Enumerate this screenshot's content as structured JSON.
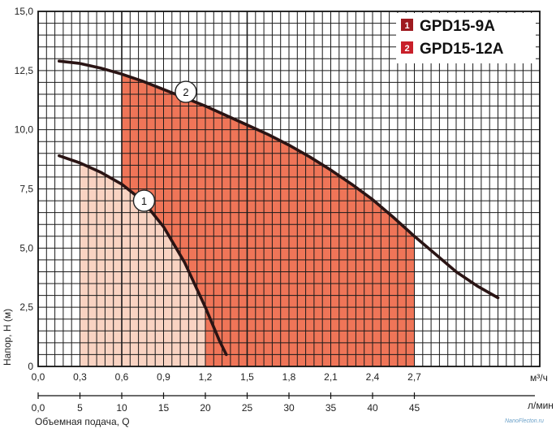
{
  "chart_data": {
    "type": "line",
    "title": "",
    "ylabel": "Напор, H (м)",
    "xlabel": "Объемная подача, Q",
    "x_unit_top": "м³/ч",
    "x_unit_bottom": "л/мин",
    "xlim": [
      0,
      3.6
    ],
    "ylim": [
      0,
      15
    ],
    "y_ticks": [
      0,
      2.5,
      5.0,
      7.5,
      10.0,
      12.5,
      15.0
    ],
    "y_tick_labels": [
      "0",
      "2,5",
      "5,0",
      "7,5",
      "10,0",
      "12,5",
      "15,0"
    ],
    "x_top_ticks": [
      0,
      0.3,
      0.6,
      0.9,
      1.2,
      1.5,
      1.8,
      2.1,
      2.4,
      2.7
    ],
    "x_top_tick_labels": [
      "0,0",
      "0,3",
      "0,6",
      "0,9",
      "1,2",
      "1,5",
      "1,8",
      "2,1",
      "2,4",
      "2,7"
    ],
    "x_bottom_ticks": [
      0,
      5,
      10,
      15,
      20,
      25,
      30,
      35,
      40,
      45
    ],
    "x_bottom_tick_labels": [
      "0,0",
      "5",
      "10",
      "15",
      "20",
      "25",
      "30",
      "35",
      "40",
      "45"
    ],
    "series": [
      {
        "name": "GPD15-9A",
        "marker": "1",
        "color": "#9e1b20",
        "x": [
          0.15,
          0.3,
          0.45,
          0.6,
          0.75,
          0.9,
          1.05,
          1.2,
          1.3,
          1.35
        ],
        "y": [
          8.9,
          8.6,
          8.2,
          7.7,
          7.0,
          5.9,
          4.4,
          2.5,
          1.1,
          0.5
        ],
        "operating_range": [
          0.3,
          1.2
        ],
        "fill_color": "#f9d3c2",
        "label_at": [
          0.76,
          7.0
        ]
      },
      {
        "name": "GPD15-12A",
        "marker": "2",
        "color": "#c8202a",
        "x": [
          0.15,
          0.3,
          0.45,
          0.6,
          0.75,
          0.9,
          1.05,
          1.2,
          1.35,
          1.5,
          1.65,
          1.8,
          1.95,
          2.1,
          2.25,
          2.4,
          2.55,
          2.7,
          2.85,
          3.0,
          3.15,
          3.3
        ],
        "y": [
          12.9,
          12.8,
          12.6,
          12.35,
          12.05,
          11.7,
          11.35,
          11.0,
          10.6,
          10.2,
          9.8,
          9.35,
          8.85,
          8.3,
          7.7,
          7.05,
          6.3,
          5.5,
          4.75,
          4.0,
          3.4,
          2.9
        ],
        "operating_range": [
          0.6,
          2.7
        ],
        "fill_color": "#ef7558",
        "label_at": [
          1.06,
          11.6
        ]
      }
    ],
    "legend": [
      {
        "num": "1",
        "label": "GPD15-9A"
      },
      {
        "num": "2",
        "label": "GPD15-12A"
      }
    ],
    "legend_position": "top-right",
    "grid": true
  },
  "watermark": "NanoFlecton.ru"
}
